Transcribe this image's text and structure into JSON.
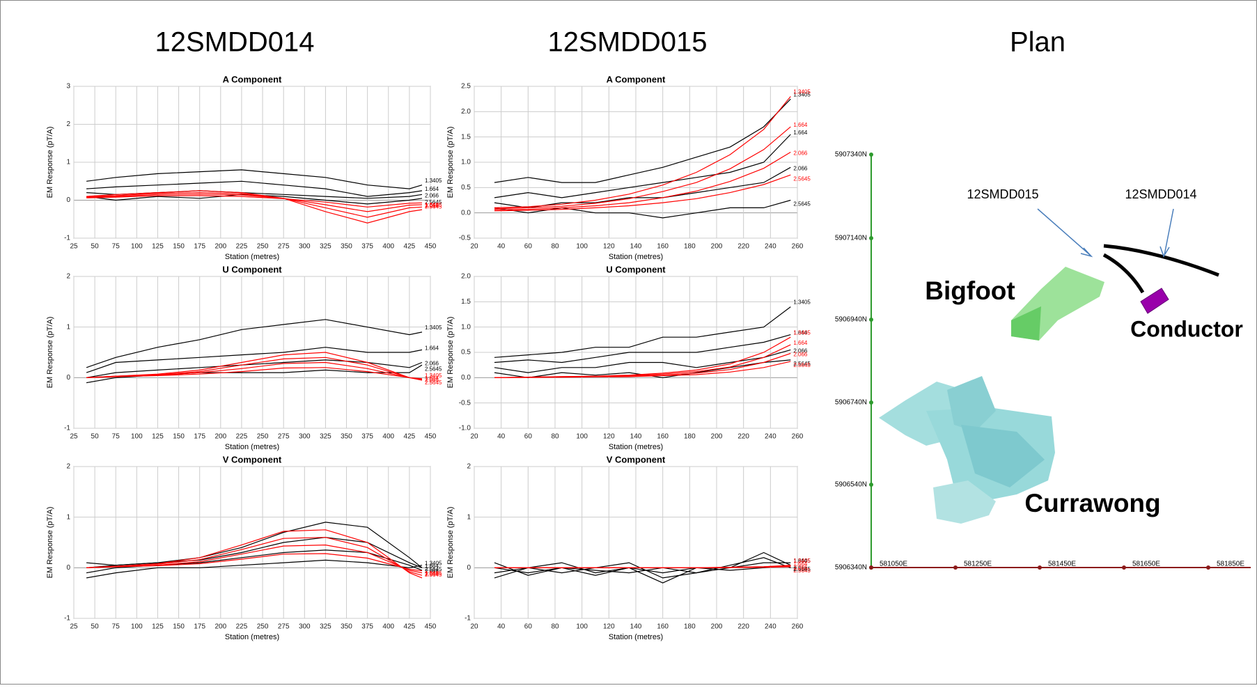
{
  "headers": [
    "12SMDD014",
    "12SMDD015",
    "Plan"
  ],
  "chart_data": [
    {
      "type": "line",
      "title": "A Component",
      "xlabel": "Station (metres)",
      "ylabel": "EM Response (pT/A)",
      "grid": true,
      "xlim": [
        25,
        450
      ],
      "xticks": [
        25,
        50,
        75,
        100,
        125,
        150,
        175,
        200,
        225,
        250,
        275,
        300,
        325,
        350,
        375,
        400,
        425,
        450
      ],
      "ylim": [
        -1,
        3
      ],
      "yticks": [
        -1,
        0,
        1,
        2,
        3
      ],
      "x": [
        40,
        75,
        125,
        175,
        225,
        275,
        325,
        375,
        425,
        440
      ],
      "series": [
        {
          "name": "1.3405",
          "color": "#000000",
          "values": [
            0.5,
            0.6,
            0.7,
            0.75,
            0.8,
            0.7,
            0.6,
            0.4,
            0.3,
            0.4
          ]
        },
        {
          "name": "1.664",
          "color": "#000000",
          "values": [
            0.3,
            0.35,
            0.4,
            0.45,
            0.5,
            0.4,
            0.3,
            0.1,
            0.2,
            0.25
          ]
        },
        {
          "name": "2.066",
          "color": "#000000",
          "values": [
            0.2,
            0.15,
            0.2,
            0.25,
            0.2,
            0.15,
            0.1,
            0.05,
            0.1,
            0.15
          ]
        },
        {
          "name": "2.5645",
          "color": "#000000",
          "values": [
            0.1,
            0,
            0.1,
            0.05,
            0.15,
            0.1,
            0,
            -0.1,
            0,
            0.05
          ]
        },
        {
          "name": "1.3405",
          "color": "#ff0000",
          "values": [
            0.1,
            0.15,
            0.2,
            0.25,
            0.2,
            0.05,
            -0.3,
            -0.6,
            -0.3,
            -0.25
          ]
        },
        {
          "name": "1.664",
          "color": "#ff0000",
          "values": [
            0.1,
            0.12,
            0.18,
            0.2,
            0.17,
            0.05,
            -0.2,
            -0.45,
            -0.2,
            -0.18
          ]
        },
        {
          "name": "2.066",
          "color": "#ff0000",
          "values": [
            0.08,
            0.1,
            0.15,
            0.16,
            0.14,
            0.05,
            -0.12,
            -0.3,
            -0.13,
            -0.12
          ]
        },
        {
          "name": "2.5645",
          "color": "#ff0000",
          "values": [
            0.06,
            0.08,
            0.12,
            0.12,
            0.1,
            0.04,
            -0.05,
            -0.18,
            -0.08,
            -0.07
          ]
        }
      ]
    },
    {
      "type": "line",
      "title": "U Component",
      "xlabel": "Station (metres)",
      "ylabel": "EM Response (pT/A)",
      "grid": true,
      "xlim": [
        25,
        450
      ],
      "xticks": [
        25,
        50,
        75,
        100,
        125,
        150,
        175,
        200,
        225,
        250,
        275,
        300,
        325,
        350,
        375,
        400,
        425,
        450
      ],
      "ylim": [
        -1,
        2
      ],
      "yticks": [
        -1,
        0,
        1,
        2
      ],
      "x": [
        40,
        75,
        125,
        175,
        225,
        275,
        325,
        375,
        425,
        440
      ],
      "series": [
        {
          "name": "1.3405",
          "color": "#000000",
          "values": [
            0.2,
            0.4,
            0.6,
            0.75,
            0.95,
            1.05,
            1.15,
            1.0,
            0.85,
            0.9
          ]
        },
        {
          "name": "1.664",
          "color": "#000000",
          "values": [
            0.1,
            0.3,
            0.35,
            0.4,
            0.45,
            0.5,
            0.6,
            0.5,
            0.5,
            0.55
          ]
        },
        {
          "name": "2.066",
          "color": "#000000",
          "values": [
            0,
            0.1,
            0.15,
            0.2,
            0.25,
            0.3,
            0.35,
            0.3,
            0.2,
            0.3
          ]
        },
        {
          "name": "2.5645",
          "color": "#000000",
          "values": [
            -0.1,
            0,
            0.05,
            0.1,
            0.1,
            0.1,
            0.15,
            0.1,
            0.1,
            0.25
          ]
        },
        {
          "name": "1.3405",
          "color": "#ff0000",
          "values": [
            0,
            0.03,
            0.07,
            0.15,
            0.3,
            0.45,
            0.5,
            0.3,
            0,
            -0.05
          ]
        },
        {
          "name": "1.664",
          "color": "#ff0000",
          "values": [
            0,
            0.03,
            0.06,
            0.12,
            0.25,
            0.37,
            0.4,
            0.25,
            0,
            -0.04
          ]
        },
        {
          "name": "2.066",
          "color": "#ff0000",
          "values": [
            0,
            0.02,
            0.05,
            0.1,
            0.18,
            0.28,
            0.3,
            0.18,
            0,
            -0.03
          ]
        },
        {
          "name": "2.5645",
          "color": "#ff0000",
          "values": [
            0,
            0.02,
            0.04,
            0.07,
            0.12,
            0.19,
            0.2,
            0.12,
            0,
            -0.02
          ]
        }
      ]
    },
    {
      "type": "line",
      "title": "V Component",
      "xlabel": "Station (metres)",
      "ylabel": "EM Response (pT/A)",
      "grid": true,
      "xlim": [
        25,
        450
      ],
      "xticks": [
        25,
        50,
        75,
        100,
        125,
        150,
        175,
        200,
        225,
        250,
        275,
        300,
        325,
        350,
        375,
        400,
        425,
        450
      ],
      "ylim": [
        -1,
        2
      ],
      "yticks": [
        -1,
        0,
        1,
        2
      ],
      "x": [
        40,
        75,
        125,
        175,
        225,
        275,
        325,
        375,
        425,
        440
      ],
      "series": [
        {
          "name": "1.3405",
          "color": "#000000",
          "values": [
            0,
            0.05,
            0.1,
            0.2,
            0.4,
            0.7,
            0.9,
            0.8,
            0.2,
            0
          ]
        },
        {
          "name": "1.664",
          "color": "#000000",
          "values": [
            0.1,
            0.05,
            0.1,
            0.15,
            0.3,
            0.5,
            0.6,
            0.5,
            0.1,
            0
          ]
        },
        {
          "name": "2.066",
          "color": "#000000",
          "values": [
            -0.1,
            0,
            0.05,
            0.1,
            0.2,
            0.3,
            0.35,
            0.3,
            0.05,
            -0.05
          ]
        },
        {
          "name": "2.5645",
          "color": "#000000",
          "values": [
            -0.2,
            -0.1,
            0,
            0,
            0.05,
            0.1,
            0.15,
            0.1,
            0,
            0.05
          ]
        },
        {
          "name": "1.3405",
          "color": "#ff0000",
          "values": [
            0,
            0.03,
            0.08,
            0.2,
            0.45,
            0.72,
            0.75,
            0.5,
            -0.1,
            -0.2
          ]
        },
        {
          "name": "1.664",
          "color": "#ff0000",
          "values": [
            0,
            0.03,
            0.07,
            0.16,
            0.36,
            0.58,
            0.6,
            0.4,
            -0.08,
            -0.15
          ]
        },
        {
          "name": "2.066",
          "color": "#ff0000",
          "values": [
            0,
            0.02,
            0.05,
            0.12,
            0.27,
            0.43,
            0.45,
            0.3,
            -0.05,
            -0.1
          ]
        },
        {
          "name": "2.5645",
          "color": "#ff0000",
          "values": [
            0,
            0.02,
            0.04,
            0.08,
            0.17,
            0.27,
            0.28,
            0.19,
            -0.03,
            -0.06
          ]
        }
      ]
    },
    {
      "type": "line",
      "title": "A Component",
      "xlabel": "Station (metres)",
      "ylabel": "EM Response (pT/A)",
      "grid": true,
      "xlim": [
        20,
        260
      ],
      "xticks": [
        20,
        40,
        60,
        80,
        100,
        120,
        140,
        160,
        180,
        200,
        220,
        240,
        260
      ],
      "ylim": [
        -0.5,
        2.5
      ],
      "yticks": [
        -0.5,
        {
          "value": 0,
          "label": "0.0"
        },
        0.5,
        {
          "value": 1,
          "label": "1.0"
        },
        1.5,
        {
          "value": 2,
          "label": "2.0"
        },
        2.5
      ],
      "x": [
        35,
        60,
        85,
        110,
        135,
        160,
        185,
        210,
        235,
        255
      ],
      "series": [
        {
          "name": "1.3405",
          "color": "#000000",
          "values": [
            0.6,
            0.7,
            0.6,
            0.6,
            0.75,
            0.9,
            1.1,
            1.3,
            1.7,
            2.25
          ]
        },
        {
          "name": "1.664",
          "color": "#000000",
          "values": [
            0.3,
            0.4,
            0.3,
            0.4,
            0.5,
            0.6,
            0.7,
            0.8,
            1.0,
            1.55
          ]
        },
        {
          "name": "2.066",
          "color": "#000000",
          "values": [
            0.2,
            0.1,
            0.2,
            0.2,
            0.3,
            0.3,
            0.4,
            0.5,
            0.6,
            0.9
          ]
        },
        {
          "name": "2.5645",
          "color": "#000000",
          "values": [
            0.1,
            0,
            0.1,
            0,
            0,
            -0.1,
            0,
            0.1,
            0.1,
            0.25
          ]
        },
        {
          "name": "1.3405",
          "color": "#ff0000",
          "values": [
            0.1,
            0.12,
            0.17,
            0.25,
            0.37,
            0.55,
            0.8,
            1.15,
            1.65,
            2.3
          ]
        },
        {
          "name": "1.664",
          "color": "#ff0000",
          "values": [
            0.08,
            0.1,
            0.13,
            0.19,
            0.28,
            0.42,
            0.6,
            0.87,
            1.25,
            1.7
          ]
        },
        {
          "name": "2.066",
          "color": "#ff0000",
          "values": [
            0.06,
            0.07,
            0.1,
            0.14,
            0.2,
            0.3,
            0.43,
            0.62,
            0.88,
            1.2
          ]
        },
        {
          "name": "2.5645",
          "color": "#ff0000",
          "values": [
            0.04,
            0.05,
            0.07,
            0.1,
            0.14,
            0.2,
            0.28,
            0.4,
            0.56,
            0.75
          ]
        }
      ]
    },
    {
      "type": "line",
      "title": "U Component",
      "xlabel": "Station (metres)",
      "ylabel": "EM Response (pT/A)",
      "grid": true,
      "xlim": [
        20,
        260
      ],
      "xticks": [
        20,
        40,
        60,
        80,
        100,
        120,
        140,
        160,
        180,
        200,
        220,
        240,
        260
      ],
      "ylim": [
        -1,
        2
      ],
      "yticks": [
        {
          "value": -1,
          "label": "-1.0"
        },
        -0.5,
        {
          "value": 0,
          "label": "0.0"
        },
        0.5,
        {
          "value": 1,
          "label": "1.0"
        },
        1.5,
        {
          "value": 2,
          "label": "2.0"
        }
      ],
      "x": [
        35,
        60,
        85,
        110,
        135,
        160,
        185,
        210,
        235,
        255
      ],
      "series": [
        {
          "name": "1.3405",
          "color": "#000000",
          "values": [
            0.4,
            0.45,
            0.5,
            0.6,
            0.6,
            0.8,
            0.8,
            0.9,
            1.0,
            1.4
          ]
        },
        {
          "name": "1.664",
          "color": "#000000",
          "values": [
            0.3,
            0.35,
            0.3,
            0.4,
            0.5,
            0.5,
            0.5,
            0.6,
            0.7,
            0.85
          ]
        },
        {
          "name": "2.066",
          "color": "#000000",
          "values": [
            0.2,
            0.1,
            0.2,
            0.2,
            0.3,
            0.3,
            0.2,
            0.3,
            0.4,
            0.55
          ]
        },
        {
          "name": "2.5645",
          "color": "#000000",
          "values": [
            0.1,
            0,
            0.1,
            0.05,
            0.1,
            0,
            0.1,
            0.2,
            0.3,
            0.35
          ]
        },
        {
          "name": "1.3405",
          "color": "#ff0000",
          "values": [
            0,
            0.01,
            0.02,
            0.03,
            0.05,
            0.09,
            0.15,
            0.27,
            0.5,
            0.8
          ]
        },
        {
          "name": "1.664",
          "color": "#ff0000",
          "values": [
            0,
            0.01,
            0.02,
            0.03,
            0.04,
            0.07,
            0.12,
            0.21,
            0.4,
            0.65
          ]
        },
        {
          "name": "2.066",
          "color": "#ff0000",
          "values": [
            0,
            0.01,
            0.015,
            0.02,
            0.03,
            0.05,
            0.09,
            0.16,
            0.3,
            0.48
          ]
        },
        {
          "name": "2.5645",
          "color": "#ff0000",
          "values": [
            0,
            0.005,
            0.01,
            0.015,
            0.02,
            0.04,
            0.06,
            0.11,
            0.2,
            0.32
          ]
        }
      ]
    },
    {
      "type": "line",
      "title": "V Component",
      "xlabel": "Station (metres)",
      "ylabel": "EM Response (pT/A)",
      "grid": true,
      "xlim": [
        20,
        260
      ],
      "xticks": [
        20,
        40,
        60,
        80,
        100,
        120,
        140,
        160,
        180,
        200,
        220,
        240,
        260
      ],
      "ylim": [
        -1,
        2
      ],
      "yticks": [
        -1,
        0,
        1,
        2
      ],
      "x": [
        35,
        60,
        85,
        110,
        135,
        160,
        185,
        210,
        235,
        255
      ],
      "series": [
        {
          "name": "1.3405",
          "color": "#000000",
          "values": [
            0,
            -0.1,
            0,
            -0.15,
            0,
            -0.1,
            0,
            0,
            0.3,
            0.05
          ]
        },
        {
          "name": "1.664",
          "color": "#000000",
          "values": [
            -0.1,
            0,
            -0.1,
            0,
            0.1,
            -0.2,
            -0.1,
            0,
            0.1,
            0.1
          ]
        },
        {
          "name": "2.066",
          "color": "#000000",
          "values": [
            0.1,
            -0.15,
            0,
            -0.05,
            -0.1,
            0,
            -0.1,
            0.05,
            0.2,
            0
          ]
        },
        {
          "name": "2.5645",
          "color": "#000000",
          "values": [
            -0.2,
            0,
            0.1,
            -0.1,
            0,
            -0.3,
            0,
            -0.05,
            0,
            0.05
          ]
        },
        {
          "name": "1.3405",
          "color": "#ff0000",
          "values": [
            0,
            0,
            0,
            0,
            0,
            0,
            0,
            0.01,
            0.02,
            0.05
          ]
        },
        {
          "name": "1.664",
          "color": "#ff0000",
          "values": [
            0,
            0,
            0,
            0,
            0,
            0,
            0,
            0.01,
            0.02,
            0.04
          ]
        },
        {
          "name": "2.066",
          "color": "#ff0000",
          "values": [
            0,
            0,
            0,
            0,
            0,
            0,
            0,
            0.005,
            0.015,
            0.03
          ]
        },
        {
          "name": "2.5645",
          "color": "#ff0000",
          "values": [
            0,
            0,
            0,
            0,
            0,
            0,
            0,
            0.005,
            0.01,
            0.02
          ]
        }
      ]
    }
  ],
  "plan": {
    "northings": [
      "5907340N",
      "5907140N",
      "5906940N",
      "5906740N",
      "5906540N",
      "5906340N"
    ],
    "eastings": [
      "581050E",
      "581250E",
      "581450E",
      "581650E",
      "581850E"
    ],
    "drillholes": [
      "12SMDD015",
      "12SMDD014"
    ],
    "bodies": [
      "Bigfoot",
      "Conductor",
      "Currawong"
    ]
  }
}
